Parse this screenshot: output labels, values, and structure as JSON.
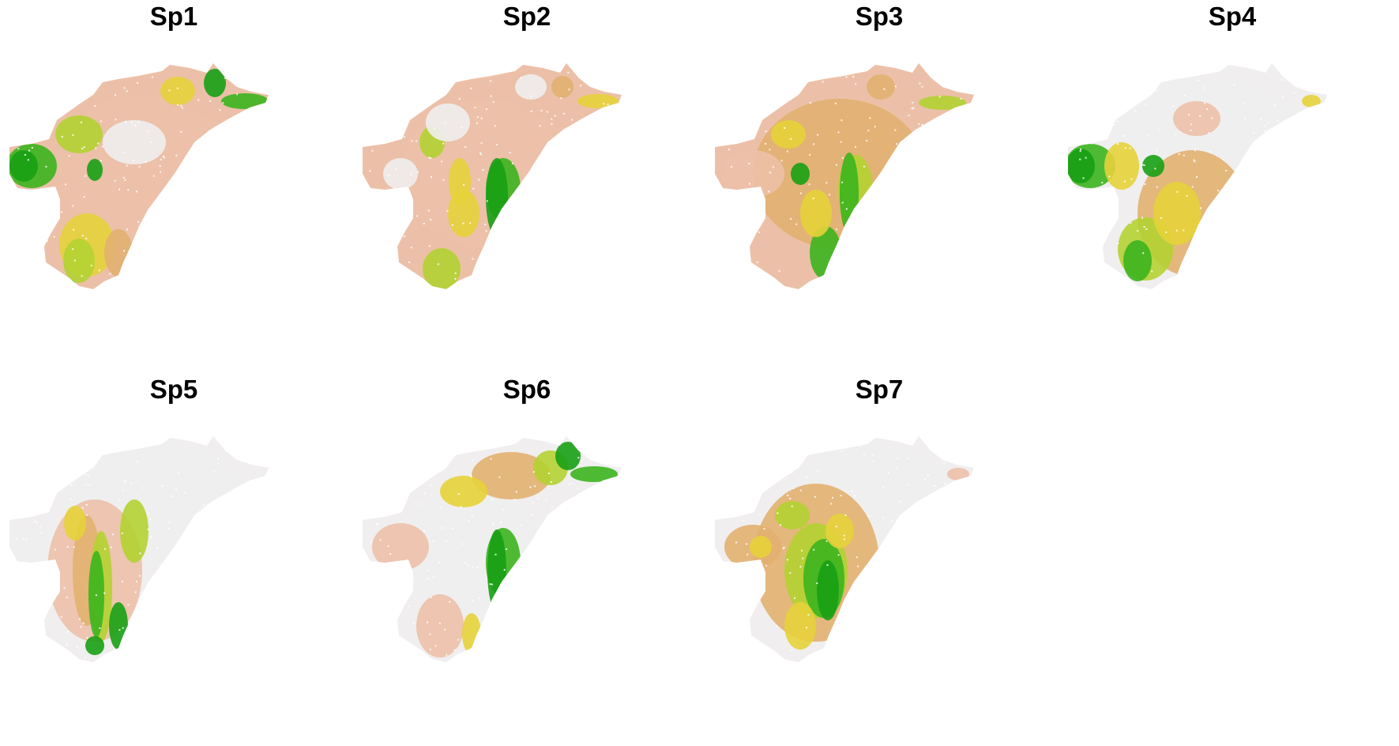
{
  "panels": [
    {
      "title": "Sp1",
      "palette": "mixed_west_east"
    },
    {
      "title": "Sp2",
      "palette": "east_coast"
    },
    {
      "title": "Sp3",
      "palette": "east_coast_warm"
    },
    {
      "title": "Sp4",
      "palette": "west_south"
    },
    {
      "title": "Sp5",
      "palette": "central_south"
    },
    {
      "title": "Sp6",
      "palette": "east_north"
    },
    {
      "title": "Sp7",
      "palette": "central"
    }
  ],
  "colors": {
    "absent": "#f0eeee",
    "low": "#ecc0a8",
    "mid_low": "#e2b070",
    "mid": "#e6d23a",
    "mid_high": "#b4d232",
    "high": "#3cb41e",
    "very_high": "#18a014"
  }
}
